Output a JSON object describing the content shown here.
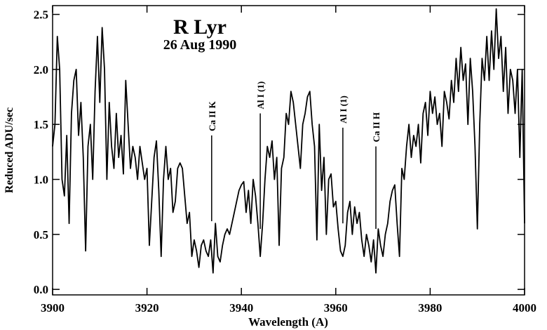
{
  "chart_data": {
    "type": "line",
    "title": "R Lyr",
    "subtitle": "26 Aug 1990",
    "x_label": "Wavelength (A)",
    "y_label": "Reduced ADU/sec",
    "color": "#000000",
    "xlim": [
      3900,
      4000
    ],
    "ylim": [
      -0.05,
      2.58
    ],
    "xticks": [
      3900,
      3920,
      3940,
      3960,
      3980,
      4000
    ],
    "yticks": [
      {
        "value": 0,
        "label": "0.0"
      },
      0.5,
      {
        "value": 1,
        "label": "1.0"
      },
      1.5,
      {
        "value": 2,
        "label": "2.0"
      },
      2.5
    ],
    "x": [
      3900,
      3900.5,
      3901,
      3901.5,
      3902,
      3902.5,
      3903,
      3903.5,
      3904,
      3904.5,
      3905,
      3905.5,
      3906,
      3906.5,
      3907,
      3907.5,
      3908,
      3908.5,
      3909,
      3909.5,
      3910,
      3910.5,
      3911,
      3911.5,
      3912,
      3912.5,
      3913,
      3913.5,
      3914,
      3914.5,
      3915,
      3915.5,
      3916,
      3916.5,
      3917,
      3917.5,
      3918,
      3918.5,
      3919,
      3919.5,
      3920,
      3920.5,
      3921,
      3921.5,
      3922,
      3922.5,
      3923,
      3923.5,
      3924,
      3924.5,
      3925,
      3925.5,
      3926,
      3926.5,
      3927,
      3927.5,
      3928,
      3928.5,
      3929,
      3929.5,
      3930,
      3930.5,
      3931,
      3931.5,
      3932,
      3932.5,
      3933,
      3933.5,
      3934,
      3934.5,
      3935,
      3935.5,
      3936,
      3936.5,
      3937,
      3937.5,
      3938,
      3938.5,
      3939,
      3939.5,
      3940,
      3940.5,
      3941,
      3941.5,
      3942,
      3942.5,
      3943,
      3943.5,
      3944,
      3944.5,
      3945,
      3945.5,
      3946,
      3946.5,
      3947,
      3947.5,
      3948,
      3948.5,
      3949,
      3949.5,
      3950,
      3950.5,
      3951,
      3951.5,
      3952,
      3952.5,
      3953,
      3953.5,
      3954,
      3954.5,
      3955,
      3955.5,
      3956,
      3956.5,
      3957,
      3957.5,
      3958,
      3958.5,
      3959,
      3959.5,
      3960,
      3960.5,
      3961,
      3961.5,
      3962,
      3962.5,
      3963,
      3963.5,
      3964,
      3964.5,
      3965,
      3965.5,
      3966,
      3966.5,
      3967,
      3967.5,
      3968,
      3968.5,
      3969,
      3969.5,
      3970,
      3970.5,
      3971,
      3971.5,
      3972,
      3972.5,
      3973,
      3973.5,
      3974,
      3974.5,
      3975,
      3975.5,
      3976,
      3976.5,
      3977,
      3977.5,
      3978,
      3978.5,
      3979,
      3979.5,
      3980,
      3980.5,
      3981,
      3981.5,
      3982,
      3982.5,
      3983,
      3983.5,
      3984,
      3984.5,
      3985,
      3985.5,
      3986,
      3986.5,
      3987,
      3987.5,
      3988,
      3988.5,
      3989,
      3989.5,
      3990,
      3990.5,
      3991,
      3991.5,
      3992,
      3992.5,
      3993,
      3993.5,
      3994,
      3994.5,
      3995,
      3995.5,
      3996,
      3996.5,
      3997,
      3997.5,
      3998,
      3998.5,
      3999,
      3999.5,
      4000
    ],
    "values": [
      1.3,
      1.5,
      2.3,
      2.0,
      1.0,
      0.85,
      1.4,
      0.6,
      1.6,
      1.9,
      2.0,
      1.4,
      1.7,
      1.2,
      0.35,
      1.3,
      1.5,
      1.0,
      1.8,
      2.3,
      1.7,
      2.38,
      2.0,
      1.0,
      1.7,
      1.3,
      1.1,
      1.6,
      1.2,
      1.4,
      1.05,
      1.9,
      1.5,
      1.1,
      1.3,
      1.2,
      1.0,
      1.3,
      1.15,
      1.0,
      1.1,
      0.4,
      0.8,
      1.2,
      1.35,
      0.9,
      0.3,
      1.0,
      1.3,
      1.0,
      1.1,
      0.7,
      0.8,
      1.1,
      1.15,
      1.1,
      0.85,
      0.6,
      0.7,
      0.3,
      0.45,
      0.35,
      0.2,
      0.4,
      0.45,
      0.35,
      0.3,
      0.45,
      0.15,
      0.6,
      0.3,
      0.25,
      0.4,
      0.5,
      0.55,
      0.5,
      0.6,
      0.7,
      0.8,
      0.9,
      0.95,
      0.98,
      0.7,
      0.9,
      0.6,
      1.0,
      0.85,
      0.6,
      0.3,
      0.6,
      1.0,
      1.3,
      1.2,
      1.35,
      1.0,
      1.2,
      0.4,
      1.1,
      1.2,
      1.6,
      1.5,
      1.8,
      1.7,
      1.5,
      1.3,
      1.1,
      1.5,
      1.6,
      1.75,
      1.8,
      1.5,
      1.3,
      0.45,
      1.5,
      0.9,
      1.2,
      0.5,
      1.0,
      1.05,
      0.75,
      0.8,
      0.55,
      0.35,
      0.3,
      0.4,
      0.7,
      0.8,
      0.5,
      0.75,
      0.6,
      0.7,
      0.45,
      0.3,
      0.5,
      0.4,
      0.25,
      0.45,
      0.15,
      0.55,
      0.4,
      0.3,
      0.5,
      0.6,
      0.8,
      0.9,
      0.95,
      0.6,
      0.3,
      1.1,
      1.0,
      1.3,
      1.5,
      1.2,
      1.4,
      1.3,
      1.5,
      1.15,
      1.6,
      1.7,
      1.4,
      1.8,
      1.6,
      1.75,
      1.5,
      1.6,
      1.3,
      1.8,
      1.7,
      1.55,
      1.9,
      1.7,
      2.1,
      1.8,
      2.2,
      1.9,
      2.05,
      1.5,
      2.1,
      1.8,
      1.3,
      0.55,
      1.5,
      2.1,
      1.9,
      2.3,
      1.9,
      2.35,
      2.0,
      2.55,
      2.1,
      2.3,
      1.8,
      2.2,
      1.6,
      2.0,
      1.9,
      1.6,
      2.0,
      1.2,
      2.0,
      0.6
    ],
    "annotations": [
      {
        "text": "Ca II K",
        "x": 3933.7,
        "y_from": 0.62,
        "y_to": 1.4
      },
      {
        "text": "Al I (1)",
        "x": 3944.0,
        "y_from": 0.55,
        "y_to": 1.6
      },
      {
        "text": "Al I (1)",
        "x": 3961.5,
        "y_from": 0.6,
        "y_to": 1.47
      },
      {
        "text": "Ca II H",
        "x": 3968.5,
        "y_from": 0.55,
        "y_to": 1.3
      }
    ]
  }
}
